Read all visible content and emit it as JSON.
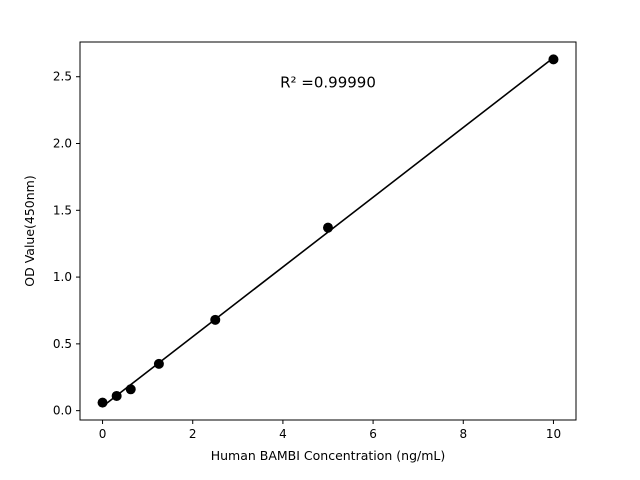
{
  "chart_data": {
    "type": "scatter",
    "title": "",
    "xlabel": "Human BAMBI Concentration (ng/mL)",
    "ylabel": "OD Value(450nm)",
    "annotation": "R² =0.99990",
    "x": [
      0,
      0.313,
      0.625,
      1.25,
      2.5,
      5,
      10
    ],
    "y": [
      0.06,
      0.11,
      0.16,
      0.35,
      0.68,
      1.37,
      2.63
    ],
    "fit_line": true,
    "xlim": [
      -0.5,
      10.5
    ],
    "ylim": [
      -0.07,
      2.76
    ],
    "xticks": {
      "values": [
        0,
        2,
        4,
        6,
        8,
        10
      ],
      "labels": [
        "0",
        "2",
        "4",
        "6",
        "8",
        "10"
      ]
    },
    "yticks": {
      "values": [
        0.0,
        0.5,
        1.0,
        1.5,
        2.0,
        2.5
      ],
      "labels": [
        "0.0",
        "0.5",
        "1.0",
        "1.5",
        "2.0",
        "2.5"
      ]
    },
    "grid": false,
    "legend": "none",
    "marker_color": "#000000",
    "line_color": "#000000",
    "axis_color": "#000000",
    "background_color": "#ffffff"
  }
}
